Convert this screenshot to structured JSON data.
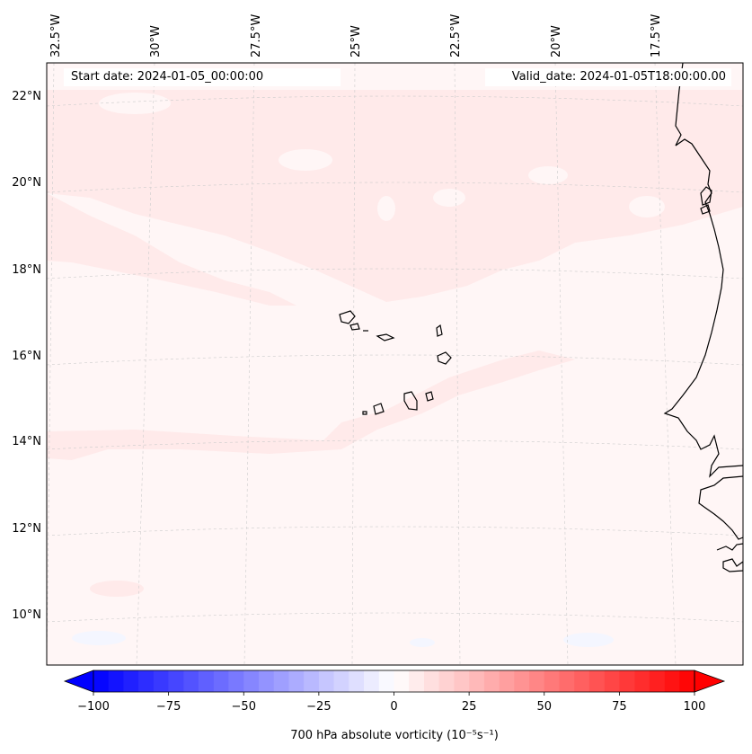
{
  "header": {
    "start_date": "Start date: 2024-01-05_00:00:00",
    "valid_date": "Valid_date: 2024-01-05T18:00:00.00"
  },
  "map": {
    "lat_ticks": [
      "22°N",
      "20°N",
      "18°N",
      "16°N",
      "14°N",
      "12°N",
      "10°N"
    ],
    "lon_ticks": [
      "32.5°W",
      "30°W",
      "27.5°W",
      "25°W",
      "22.5°W",
      "20°W",
      "17.5°W"
    ]
  },
  "colorbar": {
    "label": "700 hPa absolute vorticity (10⁻⁵s⁻¹)",
    "ticks": [
      "−100",
      "−75",
      "−50",
      "−25",
      "0",
      "25",
      "50",
      "75",
      "100"
    ],
    "min": -100,
    "max": 100,
    "levels": 40,
    "color_low": "#0000ff",
    "color_mid": "#ffffff",
    "color_high": "#ff0000"
  },
  "colors": {
    "field_base": "#fff6f6",
    "field_light": "#ffeaea",
    "field_blue": "#f4f6ff",
    "coast": "#000000",
    "grid": "#cccccc"
  }
}
